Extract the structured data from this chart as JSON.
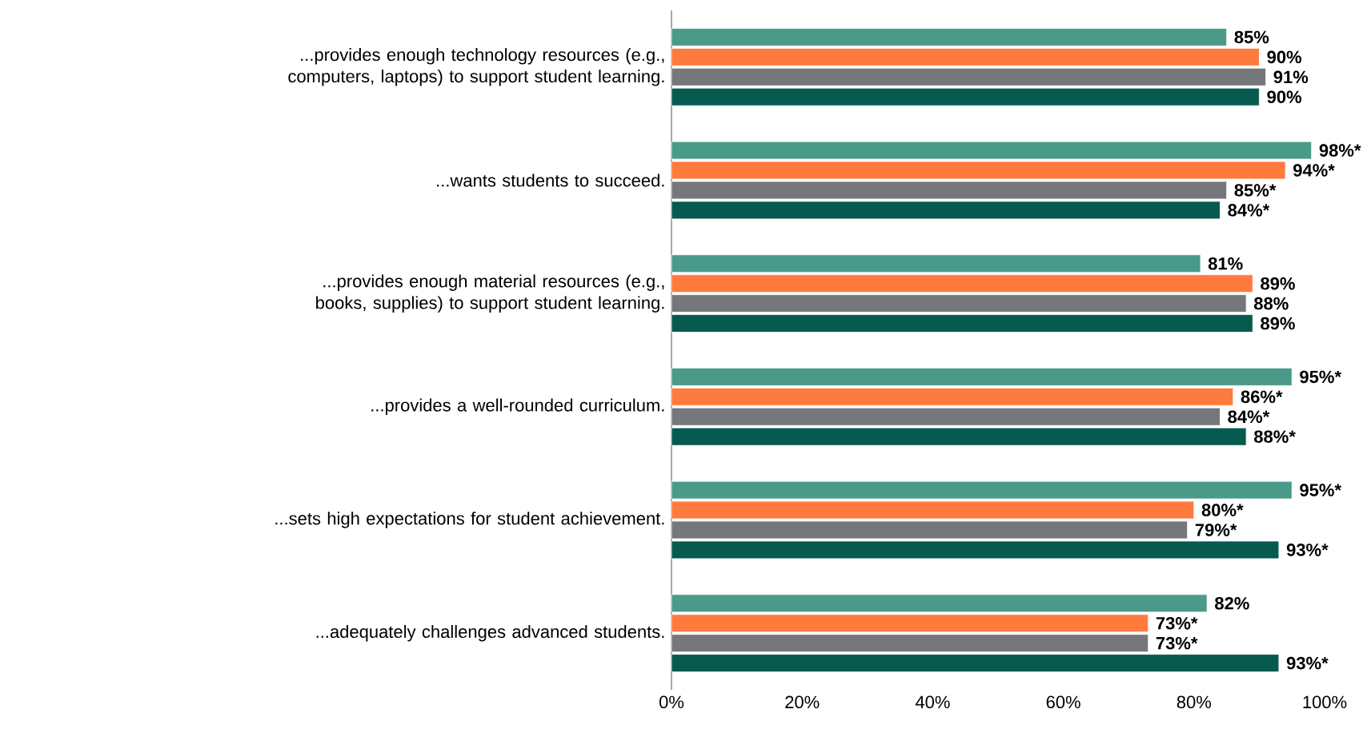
{
  "chart_data": {
    "type": "bar",
    "orientation": "horizontal",
    "categories": [
      "...provides enough technology resources (e.g., computers, laptops) to support student learning.",
      "...wants students to succeed.",
      "...provides enough material resources (e.g., books, supplies) to support student learning.",
      "...provides a well-rounded curriculum.",
      "...sets high expectations for student achievement.",
      "...adequately challenges advanced students."
    ],
    "series": [
      {
        "color": "#4a9a8a",
        "values": [
          85,
          98,
          81,
          95,
          95,
          82
        ],
        "value_labels": [
          "85%",
          "98%*",
          "81%",
          "95%*",
          "95%*",
          "82%"
        ]
      },
      {
        "color": "#ff7a3d",
        "values": [
          90,
          94,
          89,
          86,
          80,
          73
        ],
        "value_labels": [
          "90%",
          "94%*",
          "89%",
          "86%*",
          "80%*",
          "73%*"
        ]
      },
      {
        "color": "#76777a",
        "values": [
          91,
          85,
          88,
          84,
          79,
          73
        ],
        "value_labels": [
          "91%",
          "85%*",
          "88%",
          "84%*",
          "79%*",
          "73%*"
        ]
      },
      {
        "color": "#065a4f",
        "values": [
          90,
          84,
          89,
          88,
          93,
          93
        ],
        "value_labels": [
          "90%",
          "84%*",
          "89%",
          "88%*",
          "93%*",
          "93%*"
        ]
      }
    ],
    "xlim": [
      0,
      100
    ],
    "xticks": [
      {
        "value": 0,
        "label": "0%"
      },
      {
        "value": 20,
        "label": "20%"
      },
      {
        "value": 40,
        "label": "40%"
      },
      {
        "value": 60,
        "label": "60%"
      },
      {
        "value": 80,
        "label": "80%"
      },
      {
        "value": 100,
        "label": "100%"
      }
    ]
  }
}
